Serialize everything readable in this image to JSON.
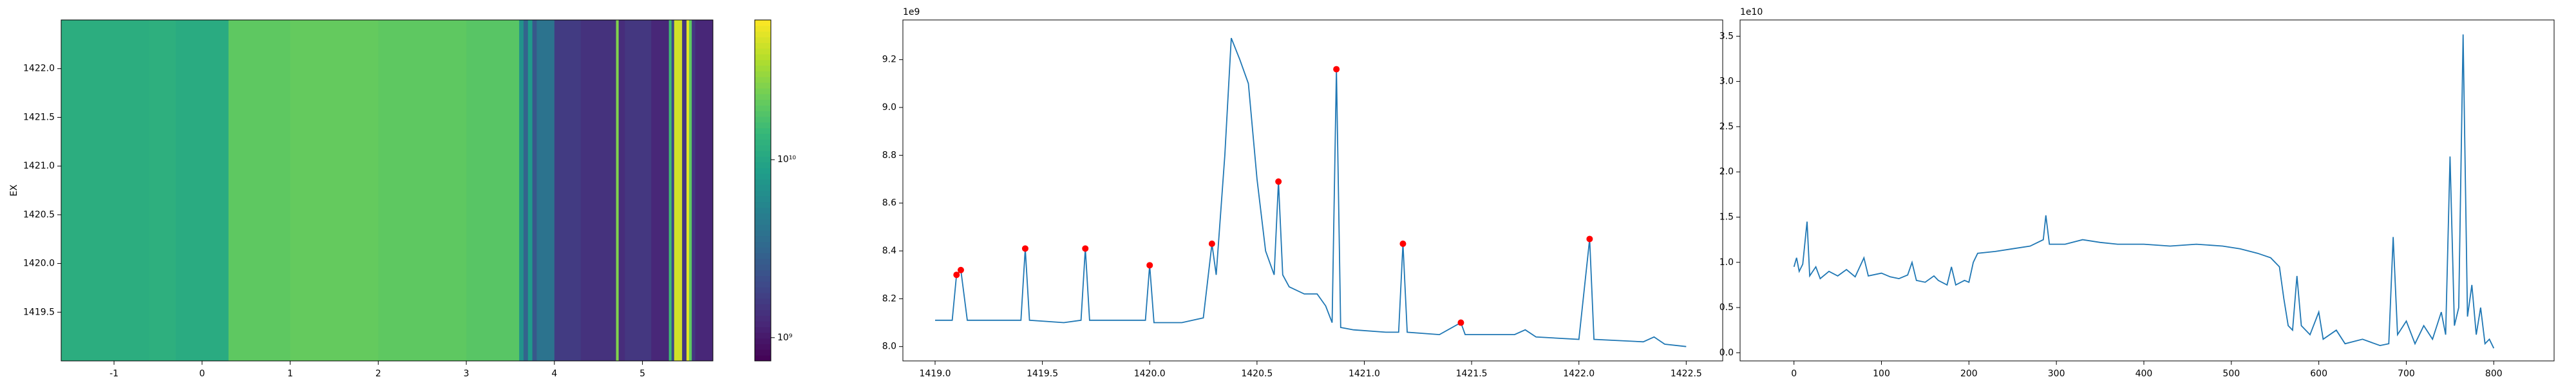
{
  "chart_data": [
    {
      "type": "heatmap",
      "ylabel": "EX",
      "colormap": "viridis",
      "log_color": true,
      "xlim": [
        -1.6,
        5.8
      ],
      "ylim": [
        1419.0,
        1422.5
      ],
      "xticks": [
        -1,
        0,
        1,
        2,
        3,
        4,
        5
      ],
      "yticks": [
        1419.5,
        {
          "value": 1420,
          "label": "1420.0"
        },
        1420.5,
        {
          "value": 1421,
          "label": "1421.0"
        },
        1421.5,
        {
          "value": 1422,
          "label": "1422.0"
        }
      ],
      "x_edges": [
        -1.6,
        -0.6,
        -0.3,
        0.3,
        1.0,
        2.0,
        3.0,
        3.6,
        3.65,
        3.7,
        3.75,
        3.8,
        4.0,
        4.3,
        4.7,
        4.73,
        4.8,
        5.1,
        5.3,
        5.33,
        5.36,
        5.45,
        5.5,
        5.53,
        5.56,
        5.6,
        5.8
      ],
      "values": [
        11500000000.0,
        12000000000.0,
        11000000000.0,
        20000000000.0,
        21000000000.0,
        20000000000.0,
        19000000000.0,
        7000000000.0,
        3000000000.0,
        8000000000.0,
        2500000000.0,
        4000000000.0,
        1600000000.0,
        1400000000.0,
        26000000000.0,
        1300000000.0,
        1500000000.0,
        1200000000.0,
        15000000000.0,
        2000000000.0,
        45000000000.0,
        1500000000.0,
        50000000000.0,
        20000000000.0,
        1500000000.0,
        1200000000.0
      ],
      "colorbar": {
        "lim": [
          740000000.0,
          61000000000.0
        ],
        "ticks": [
          {
            "value": 1000000000.0,
            "label": "10⁹"
          },
          {
            "value": 10000000000.0,
            "label": "10¹⁰"
          }
        ]
      }
    },
    {
      "type": "line",
      "offset_text": "1e9",
      "xlim": [
        1418.85,
        1422.67
      ],
      "ylim": [
        7.94,
        9.366
      ],
      "xticks": [
        {
          "value": 1419,
          "label": "1419.0"
        },
        1419.5,
        {
          "value": 1420,
          "label": "1420.0"
        },
        1420.5,
        {
          "value": 1421,
          "label": "1421.0"
        },
        1421.5,
        {
          "value": 1422,
          "label": "1422.0"
        },
        1422.5
      ],
      "yticks": [
        {
          "value": 8,
          "label": "8.0"
        },
        8.2,
        8.4,
        8.6,
        8.8,
        {
          "value": 9,
          "label": "9.0"
        },
        9.2
      ],
      "series": [
        {
          "style": "line",
          "color": "#1f77b4",
          "x": [
            1419.0,
            1419.08,
            1419.1,
            1419.12,
            1419.15,
            1419.3,
            1419.4,
            1419.42,
            1419.44,
            1419.6,
            1419.68,
            1419.7,
            1419.72,
            1419.9,
            1419.98,
            1420.0,
            1420.02,
            1420.15,
            1420.25,
            1420.29,
            1420.31,
            1420.35,
            1420.38,
            1420.42,
            1420.46,
            1420.5,
            1420.54,
            1420.58,
            1420.6,
            1420.62,
            1420.65,
            1420.72,
            1420.78,
            1420.82,
            1420.85,
            1420.87,
            1420.89,
            1420.95,
            1421.1,
            1421.16,
            1421.18,
            1421.2,
            1421.35,
            1421.45,
            1421.47,
            1421.6,
            1421.7,
            1421.75,
            1421.8,
            1422.0,
            1422.05,
            1422.07,
            1422.3,
            1422.35,
            1422.4,
            1422.5
          ],
          "values": [
            8.11,
            8.11,
            8.3,
            8.32,
            8.11,
            8.11,
            8.11,
            8.41,
            8.11,
            8.1,
            8.11,
            8.41,
            8.11,
            8.11,
            8.11,
            8.34,
            8.1,
            8.1,
            8.12,
            8.43,
            8.3,
            8.8,
            9.29,
            9.2,
            9.1,
            8.7,
            8.4,
            8.3,
            8.69,
            8.3,
            8.25,
            8.22,
            8.22,
            8.17,
            8.1,
            9.16,
            8.08,
            8.07,
            8.06,
            8.06,
            8.43,
            8.06,
            8.05,
            8.1,
            8.05,
            8.05,
            8.05,
            8.07,
            8.04,
            8.03,
            8.45,
            8.03,
            8.02,
            8.04,
            8.01,
            8.0
          ]
        },
        {
          "style": "markers",
          "color": "#ff0000",
          "x": [
            1419.1,
            1419.12,
            1419.42,
            1419.7,
            1420.0,
            1420.29,
            1420.6,
            1420.87,
            1421.18,
            1421.45,
            1422.05
          ],
          "values": [
            8.3,
            8.32,
            8.41,
            8.41,
            8.34,
            8.43,
            8.69,
            9.16,
            8.43,
            8.1,
            8.45
          ]
        }
      ]
    },
    {
      "type": "line",
      "offset_text": "1e10",
      "xlim": [
        -61.6,
        869
      ],
      "ylim": [
        -0.09,
        3.68
      ],
      "xticks": [
        0,
        100,
        200,
        300,
        400,
        500,
        600,
        700,
        800
      ],
      "yticks": [
        {
          "value": 0,
          "label": "0.0"
        },
        0.5,
        {
          "value": 1,
          "label": "1.0"
        },
        1.5,
        {
          "value": 2,
          "label": "2.0"
        },
        2.5,
        {
          "value": 3,
          "label": "3.0"
        },
        3.5
      ],
      "series": [
        {
          "style": "line",
          "color": "#1f77b4",
          "x": [
            0,
            3,
            6,
            10,
            15,
            18,
            25,
            30,
            40,
            50,
            60,
            70,
            80,
            85,
            100,
            110,
            120,
            130,
            135,
            140,
            150,
            160,
            165,
            175,
            180,
            185,
            195,
            200,
            205,
            210,
            230,
            250,
            270,
            285,
            288,
            292,
            310,
            330,
            350,
            370,
            400,
            430,
            460,
            490,
            510,
            530,
            545,
            555,
            560,
            565,
            570,
            575,
            580,
            590,
            600,
            605,
            620,
            630,
            650,
            670,
            680,
            685,
            690,
            700,
            710,
            720,
            730,
            740,
            745,
            750,
            755,
            760,
            765,
            770,
            775,
            780,
            785,
            790,
            795,
            800
          ],
          "values": [
            0.95,
            1.05,
            0.9,
            0.98,
            1.45,
            0.85,
            0.95,
            0.82,
            0.9,
            0.85,
            0.92,
            0.84,
            1.05,
            0.85,
            0.88,
            0.84,
            0.82,
            0.86,
            1.0,
            0.8,
            0.78,
            0.85,
            0.8,
            0.75,
            0.95,
            0.75,
            0.8,
            0.78,
            1.0,
            1.1,
            1.12,
            1.15,
            1.18,
            1.25,
            1.52,
            1.2,
            1.2,
            1.25,
            1.22,
            1.2,
            1.2,
            1.18,
            1.2,
            1.18,
            1.15,
            1.1,
            1.05,
            0.95,
            0.6,
            0.3,
            0.25,
            0.85,
            0.3,
            0.2,
            0.45,
            0.15,
            0.25,
            0.1,
            0.15,
            0.08,
            0.1,
            1.28,
            0.2,
            0.35,
            0.1,
            0.3,
            0.15,
            0.45,
            0.2,
            2.17,
            0.3,
            0.5,
            3.52,
            0.4,
            0.75,
            0.2,
            0.5,
            0.1,
            0.15,
            0.05
          ]
        }
      ]
    }
  ]
}
